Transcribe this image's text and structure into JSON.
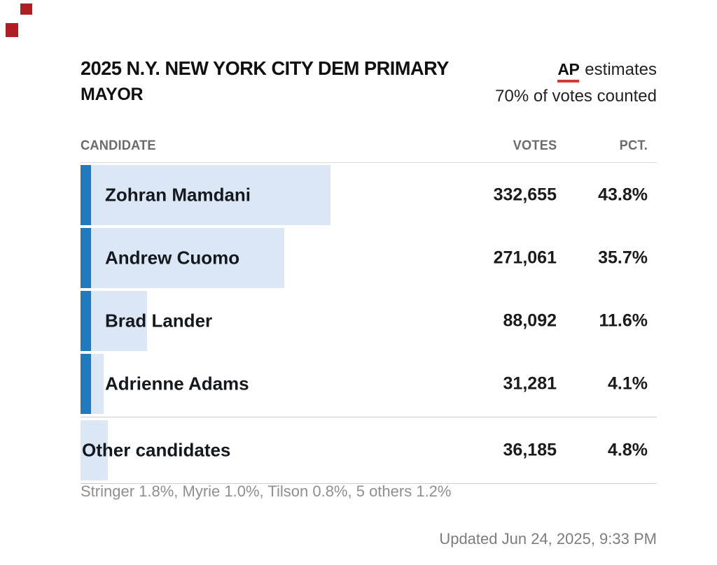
{
  "header": {
    "title_line1": "2025 N.Y. NEW YORK CITY DEM PRIMARY",
    "title_line2": "MAYOR",
    "ap_logo": "AP",
    "ap_note": "estimates",
    "counted_note": "70% of votes counted"
  },
  "table": {
    "columns": {
      "candidate": "CANDIDATE",
      "votes": "VOTES",
      "pct": "PCT."
    },
    "rows": [
      {
        "candidate": "Zohran Mamdani",
        "votes": "332,655",
        "pct": "43.8%",
        "pct_value": 43.8,
        "accent": true
      },
      {
        "candidate": "Andrew Cuomo",
        "votes": "271,061",
        "pct": "35.7%",
        "pct_value": 35.7,
        "accent": true
      },
      {
        "candidate": "Brad Lander",
        "votes": "88,092",
        "pct": "11.6%",
        "pct_value": 11.6,
        "accent": true
      },
      {
        "candidate": "Adrienne Adams",
        "votes": "31,281",
        "pct": "4.1%",
        "pct_value": 4.1,
        "accent": true
      },
      {
        "candidate": "Other candidates",
        "votes": "36,185",
        "pct": "4.8%",
        "pct_value": 4.8,
        "accent": false
      }
    ]
  },
  "footnote": "Stringer 1.8%, Myrie 1.0%, Tilson 0.8%, 5 others 1.2%",
  "updated": "Updated Jun 24, 2025, 9:33 PM",
  "colors": {
    "accent_blue": "#1f7ac0",
    "bar_background_blue": "#dbe7f4",
    "ap_underline_red": "#cf3a3a",
    "marker_red": "#b01e23",
    "text_dark": "#14181f",
    "text_gray": "#6b6b6b"
  },
  "chart_data": {
    "type": "bar",
    "orientation": "horizontal",
    "title": "2025 N.Y. NEW YORK CITY DEM PRIMARY — MAYOR",
    "subtitle": "AP estimates — 70% of votes counted",
    "categories": [
      "Zohran Mamdani",
      "Andrew Cuomo",
      "Brad Lander",
      "Adrienne Adams",
      "Other candidates"
    ],
    "series": [
      {
        "name": "Votes",
        "values": [
          332655,
          271061,
          88092,
          31281,
          36185
        ]
      },
      {
        "name": "Percent",
        "values": [
          43.8,
          35.7,
          11.6,
          4.1,
          4.8
        ]
      }
    ],
    "xlim": [
      0,
      100
    ],
    "legend_position": "none",
    "grid": false,
    "annotations": [
      "Stringer 1.8%, Myrie 1.0%, Tilson 0.8%, 5 others 1.2%",
      "Updated Jun 24, 2025, 9:33 PM"
    ]
  }
}
